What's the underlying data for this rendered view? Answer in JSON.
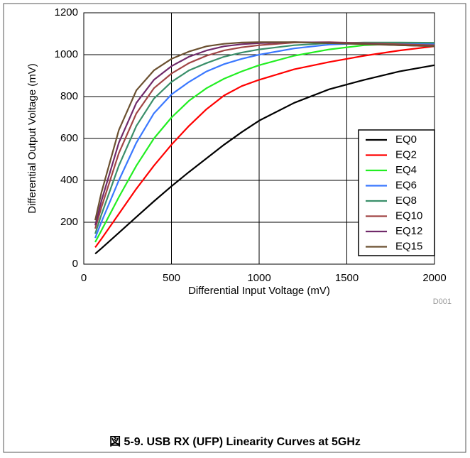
{
  "chart_data": {
    "type": "line",
    "caption": "図 5-9. USB RX (UFP) Linearity Curves at 5GHz",
    "note": "D001",
    "x_label": "Differential Input Voltage (mV)",
    "y_label": "Differential Output Voltage (mV)",
    "x": [
      65,
      100,
      200,
      300,
      400,
      500,
      600,
      700,
      800,
      900,
      1000,
      1200,
      1400,
      1600,
      1800,
      2000
    ],
    "series": [
      {
        "name": "EQ0",
        "color": "#000000",
        "values": [
          50,
          75,
          150,
          225,
          300,
          372,
          440,
          505,
          570,
          630,
          685,
          770,
          835,
          880,
          920,
          950
        ]
      },
      {
        "name": "EQ2",
        "color": "#ff0000",
        "values": [
          80,
          120,
          240,
          360,
          470,
          570,
          660,
          740,
          805,
          850,
          880,
          930,
          965,
          995,
          1020,
          1040
        ]
      },
      {
        "name": "EQ4",
        "color": "#22ee22",
        "values": [
          105,
          160,
          320,
          470,
          600,
          700,
          780,
          840,
          885,
          920,
          950,
          995,
          1025,
          1045,
          1052,
          1050
        ]
      },
      {
        "name": "EQ6",
        "color": "#3a78ff",
        "values": [
          125,
          200,
          400,
          580,
          720,
          810,
          870,
          920,
          955,
          980,
          1000,
          1030,
          1048,
          1055,
          1055,
          1052
        ]
      },
      {
        "name": "EQ8",
        "color": "#3a8f6a",
        "values": [
          145,
          235,
          470,
          660,
          790,
          870,
          925,
          960,
          990,
          1010,
          1025,
          1045,
          1055,
          1058,
          1058,
          1057
        ]
      },
      {
        "name": "EQ10",
        "color": "#a04545",
        "values": [
          170,
          270,
          530,
          720,
          840,
          910,
          960,
          995,
          1020,
          1035,
          1045,
          1058,
          1060,
          1055,
          1050,
          1045
        ]
      },
      {
        "name": "EQ12",
        "color": "#702a6a",
        "values": [
          185,
          300,
          580,
          770,
          880,
          945,
          990,
          1020,
          1040,
          1050,
          1055,
          1060,
          1058,
          1052,
          1045,
          1040
        ]
      },
      {
        "name": "EQ15",
        "color": "#6b5030",
        "values": [
          210,
          340,
          640,
          830,
          925,
          980,
          1015,
          1040,
          1052,
          1058,
          1060,
          1060,
          1055,
          1050,
          1045,
          1040
        ]
      }
    ],
    "xlim": [
      0,
      2000
    ],
    "xticks": [
      0,
      500,
      1000,
      1500,
      2000
    ],
    "ylim": [
      0,
      1200
    ],
    "yticks": [
      0,
      200,
      400,
      600,
      800,
      1000,
      1200
    ],
    "grid": true,
    "legend": "lower right"
  }
}
